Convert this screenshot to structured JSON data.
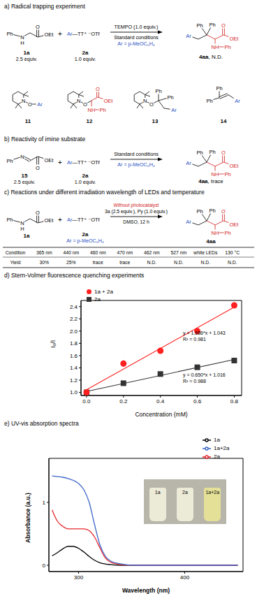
{
  "panel_a": {
    "title": "a) Radical trapping experiment",
    "reactant_1": {
      "atoms": {
        "ph": "Ph",
        "n": "N",
        "h": "H",
        "o": "O",
        "oet": "OEt"
      },
      "label": "1a",
      "amount": "2.5 equiv."
    },
    "plus": "+",
    "reactant_2": {
      "formula": "Ar—TT⁺ ⁻OTf",
      "label": "2a",
      "amount": "1.0 equiv."
    },
    "above_arrow": [
      "TEMPO (1.0 equiv.)"
    ],
    "below_arrow": [
      "Standard conditions",
      "Ar = p-MeOC₆H₄"
    ],
    "product": {
      "atoms": {
        "ph1": "Ph",
        "ph2": "Ph",
        "ar": "Ar",
        "o": "O",
        "oet": "OEt",
        "nh": "NH",
        "ph3": "Ph"
      },
      "label": "4aa, N.D."
    },
    "trapped": [
      {
        "label": "11",
        "atoms": {
          "n": "N",
          "o": "O",
          "ar": "Ar"
        }
      },
      {
        "label": "12",
        "atoms": {
          "n": "N",
          "o": "O",
          "o2": "O",
          "oet": "OEt",
          "nh": "NH",
          "ph": "Ph"
        }
      },
      {
        "label": "13",
        "atoms": {
          "n": "N",
          "o": "O",
          "ph1": "Ph",
          "ph2": "Ph",
          "ar": "Ar"
        }
      },
      {
        "label": "14",
        "atoms": {
          "ph1": "Ph",
          "ph2": "Ph",
          "ar": "Ar"
        }
      }
    ]
  },
  "panel_b": {
    "title": "b) Reactivity of imine substrate",
    "reactant_1": {
      "atoms": {
        "ph": "Ph",
        "n": "N",
        "o": "O",
        "oet": "OEt"
      },
      "label": "15",
      "amount": "2.5 equiv."
    },
    "plus": "+",
    "reactant_2": {
      "formula": "Ar—TT⁺ ⁻OTf",
      "label": "2a",
      "amount": "1.0 equiv."
    },
    "above_arrow": [
      "Standard conditions"
    ],
    "below_arrow": [
      "Ar = p-MeOC₆H₄"
    ],
    "product": {
      "atoms": {
        "ph1": "Ph",
        "ph2": "Ph",
        "ar": "Ar",
        "o": "O",
        "oet": "OEt",
        "nh": "NH",
        "ph3": "Ph"
      },
      "label": "4aa, trace"
    }
  },
  "panel_c": {
    "title": "c) Reactions under different irradiation wavelength of LEDs and temperature",
    "reactant_1": {
      "atoms": {
        "ph": "Ph",
        "n": "N",
        "h": "H",
        "o": "O",
        "oet": "OEt"
      },
      "label": "1a"
    },
    "plus": "+",
    "reactant_2": {
      "formula": "Ar—TT⁺ ⁻OTf",
      "label": "2a",
      "note": "Ar = p-MeOC₆H₄"
    },
    "above_arrow": [
      "Without photocatalyst",
      "3a (2.5 equiv.), Py (1.0 equiv.)"
    ],
    "below_arrow": [
      "DMSO, 12 h"
    ],
    "product": {
      "atoms": {
        "ph1": "Ph",
        "ph2": "Ph",
        "ar": "Ar",
        "o": "O",
        "oet": "OEt",
        "nh": "NH",
        "ph3": "Ph"
      },
      "label": "4aa"
    },
    "table": {
      "rows": [
        [
          "Condition",
          "365 nm",
          "440 nm",
          "460 nm",
          "470 nm",
          "462 nm",
          "527 nm",
          "white LEDs",
          "130 °C"
        ],
        [
          "Yield",
          "30%",
          "25%",
          "trace",
          "trace",
          "N.D.",
          "N.D.",
          "N.D.",
          "N.D."
        ]
      ]
    }
  },
  "chart_data": [
    {
      "type": "scatter",
      "title": "d) Stern-Volmer fluorescence quenching experiments",
      "x_label": "Concentration (mM)",
      "y_label": "I₀/I",
      "x": [
        0,
        0.2,
        0.4,
        0.6,
        0.8
      ],
      "xlim": [
        -0.03,
        0.84
      ],
      "ylim": [
        0.95,
        2.5
      ],
      "xticks": [
        {
          "value": 0,
          "label": "0.0"
        },
        0.2,
        0.4,
        0.6,
        0.8
      ],
      "yticks": [
        {
          "value": 1,
          "label": "1.0"
        },
        1.2,
        1.4,
        1.6,
        1.8,
        {
          "value": 2,
          "label": "2.0"
        },
        2.2,
        2.4
      ],
      "grid": false,
      "legend": "upper left",
      "series": [
        {
          "name": "2a",
          "color": "#333333",
          "marker": "square",
          "values": [
            1.0,
            1.15,
            1.3,
            1.41,
            1.52
          ],
          "fit": {
            "x": [
              0,
              0.8
            ],
            "values": [
              1.016,
              1.536
            ]
          },
          "annotations": [
            "y = 0.650*x + 1.016",
            "R² = 0.988"
          ]
        },
        {
          "name": "1a + 2a",
          "color": "#ff2020",
          "marker": "circle",
          "values": [
            1.0,
            1.47,
            1.68,
            2.0,
            2.42
          ],
          "fit": {
            "x": [
              0,
              0.8
            ],
            "values": [
              1.043,
              2.392
            ]
          },
          "annotations": [
            "y = 1.686*x + 1.043",
            "R² = 0.981"
          ]
        }
      ]
    },
    {
      "type": "line",
      "title": "e) UV-vis absorption spectra",
      "x_label": "Wavelength (nm)",
      "y_label": "Absorbance (a.u.)",
      "x": [
        275,
        280,
        285,
        290,
        295,
        300,
        305,
        310,
        315,
        320,
        325,
        330,
        340,
        350,
        400,
        450
      ],
      "xlim": [
        272,
        455
      ],
      "ylim": [
        -0.1,
        1.7
      ],
      "xticks": [
        300,
        400
      ],
      "yticks": [
        0,
        1
      ],
      "grid": false,
      "legend": "upper right",
      "series": [
        {
          "name": "1a",
          "color": "#000000",
          "values": [
            0.15,
            0.2,
            0.26,
            0.3,
            0.3,
            0.27,
            0.21,
            0.14,
            0.08,
            0.04,
            0.02,
            0.01,
            0,
            0,
            0,
            0
          ]
        },
        {
          "name": "2a",
          "color": "#e8262a",
          "values": [
            0.88,
            0.7,
            0.62,
            0.58,
            0.58,
            0.58,
            0.58,
            0.55,
            0.45,
            0.28,
            0.12,
            0.05,
            0.01,
            0,
            0,
            0
          ]
        },
        {
          "name": "1a+2a",
          "color": "#3b64c8",
          "values": [
            1.42,
            1.41,
            1.4,
            1.38,
            1.35,
            1.3,
            1.2,
            1.0,
            0.65,
            0.33,
            0.15,
            0.07,
            0.02,
            0,
            0,
            0
          ]
        }
      ]
    }
  ],
  "inset": {
    "labels": [
      "1a",
      "2a",
      "1a+2a"
    ]
  }
}
